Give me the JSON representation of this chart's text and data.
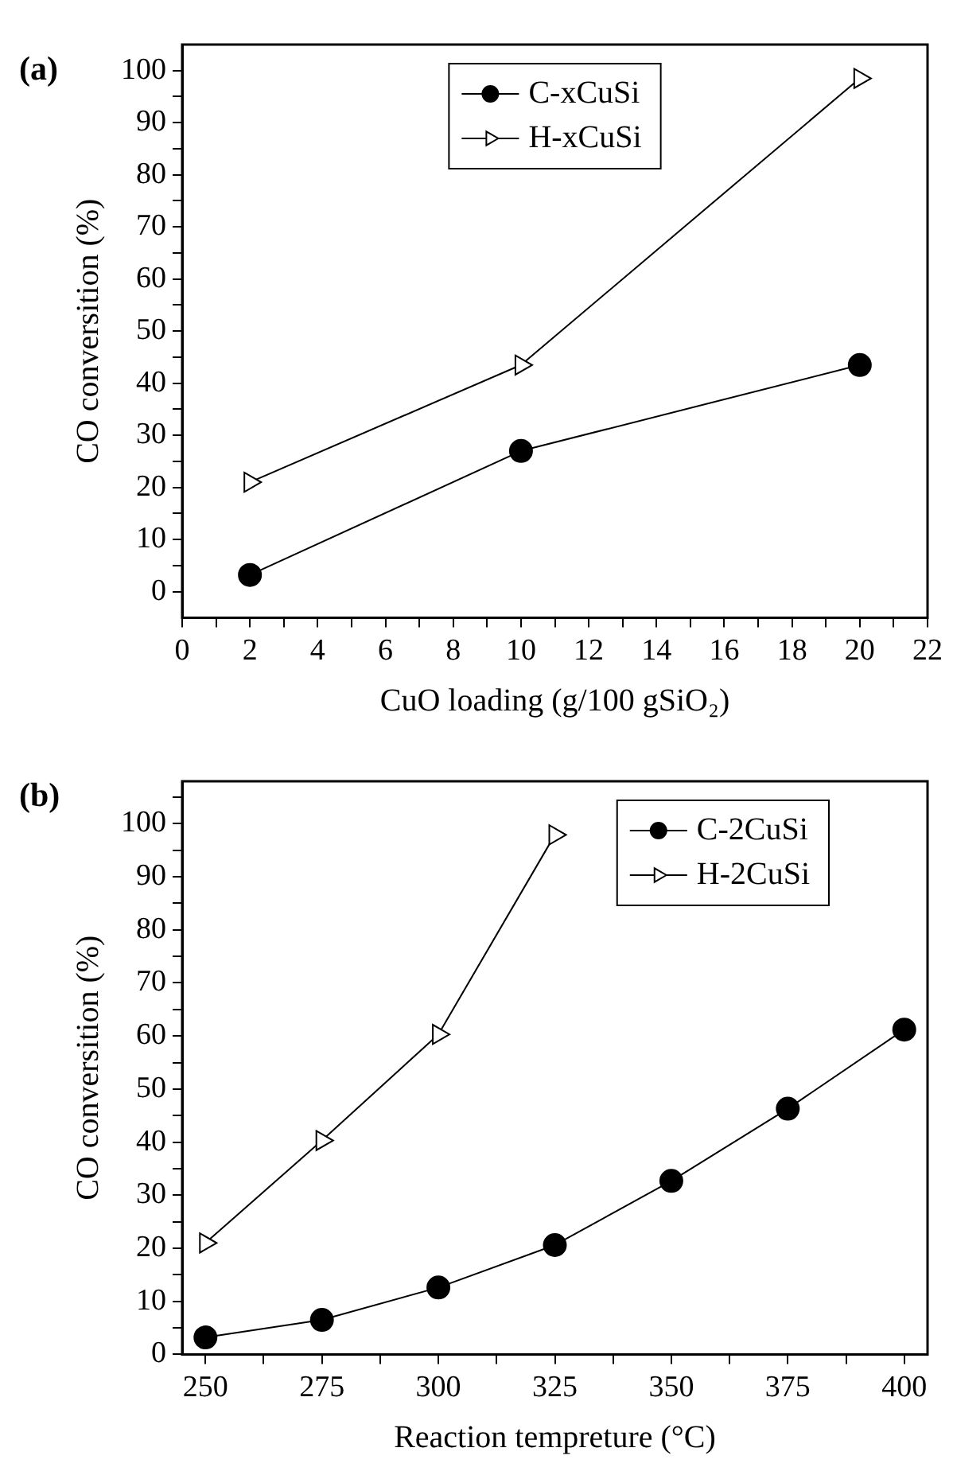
{
  "chart_data": [
    {
      "type": "line",
      "annotations": [
        "(a)"
      ],
      "xlabel": "CuO loading (g/100 gSiO₂)",
      "ylabel": "CO conversition (%)",
      "xlim": [
        0,
        22
      ],
      "xticks": [
        0,
        {
          "value": 1,
          "label": null
        },
        2,
        {
          "value": 3,
          "label": null
        },
        4,
        {
          "value": 5,
          "label": null
        },
        6,
        {
          "value": 7,
          "label": null
        },
        8,
        {
          "value": 9,
          "label": null
        },
        10,
        {
          "value": 11,
          "label": null
        },
        12,
        {
          "value": 13,
          "label": null
        },
        14,
        {
          "value": 15,
          "label": null
        },
        16,
        {
          "value": 17,
          "label": null
        },
        18,
        {
          "value": 19,
          "label": null
        },
        20,
        {
          "value": 21,
          "label": null
        },
        22
      ],
      "ylim": [
        -5,
        105
      ],
      "yticks": [
        0,
        {
          "value": 5,
          "label": null
        },
        10,
        {
          "value": 15,
          "label": null
        },
        20,
        {
          "value": 25,
          "label": null
        },
        30,
        {
          "value": 35,
          "label": null
        },
        40,
        {
          "value": 45,
          "label": null
        },
        50,
        {
          "value": 55,
          "label": null
        },
        60,
        {
          "value": 65,
          "label": null
        },
        70,
        {
          "value": 75,
          "label": null
        },
        80,
        {
          "value": 85,
          "label": null
        },
        90,
        {
          "value": 95,
          "label": null
        },
        100
      ],
      "x": [
        2,
        10,
        20
      ],
      "grid": false,
      "legend": "top",
      "series": [
        {
          "name": "C-xCuSi",
          "color": "#000000",
          "marker": "circle",
          "values": [
            3.2,
            27,
            43.5
          ]
        },
        {
          "name": "H-xCuSi",
          "color": "#000000",
          "marker": "triangle",
          "values": [
            21,
            43.5,
            98.5
          ]
        }
      ]
    },
    {
      "type": "line",
      "annotations": [
        "(b)"
      ],
      "xlabel": "Reaction tempreture (°C)",
      "ylabel": "CO conversition (%)",
      "xlim": [
        245,
        405
      ],
      "xticks": [
        250,
        {
          "value": 262.5,
          "label": null
        },
        275,
        {
          "value": 287.5,
          "label": null
        },
        300,
        {
          "value": 312.5,
          "label": null
        },
        325,
        {
          "value": 337.5,
          "label": null
        },
        350,
        {
          "value": 362.5,
          "label": null
        },
        375,
        {
          "value": 387.5,
          "label": null
        },
        400
      ],
      "ylim": [
        0,
        108
      ],
      "yticks": [
        0,
        {
          "value": 5,
          "label": null
        },
        10,
        {
          "value": 15,
          "label": null
        },
        20,
        {
          "value": 25,
          "label": null
        },
        30,
        {
          "value": 35,
          "label": null
        },
        40,
        {
          "value": 45,
          "label": null
        },
        50,
        {
          "value": 55,
          "label": null
        },
        60,
        {
          "value": 65,
          "label": null
        },
        70,
        {
          "value": 75,
          "label": null
        },
        80,
        {
          "value": 85,
          "label": null
        },
        90,
        {
          "value": 95,
          "label": null
        },
        100,
        {
          "value": 105,
          "label": null
        }
      ],
      "grid": false,
      "legend": "top right",
      "series": [
        {
          "name": "C-2CuSi",
          "color": "#000000",
          "marker": "circle",
          "x": [
            250,
            275,
            300,
            325,
            350,
            375,
            400
          ],
          "values": [
            3.2,
            6.5,
            12.6,
            20.6,
            32.7,
            46.3,
            61.2
          ]
        },
        {
          "name": "H-2CuSi",
          "color": "#000000",
          "marker": "triangle",
          "x": [
            250,
            275,
            300,
            325
          ],
          "values": [
            21,
            40.3,
            60.3,
            97.9
          ]
        }
      ]
    }
  ]
}
